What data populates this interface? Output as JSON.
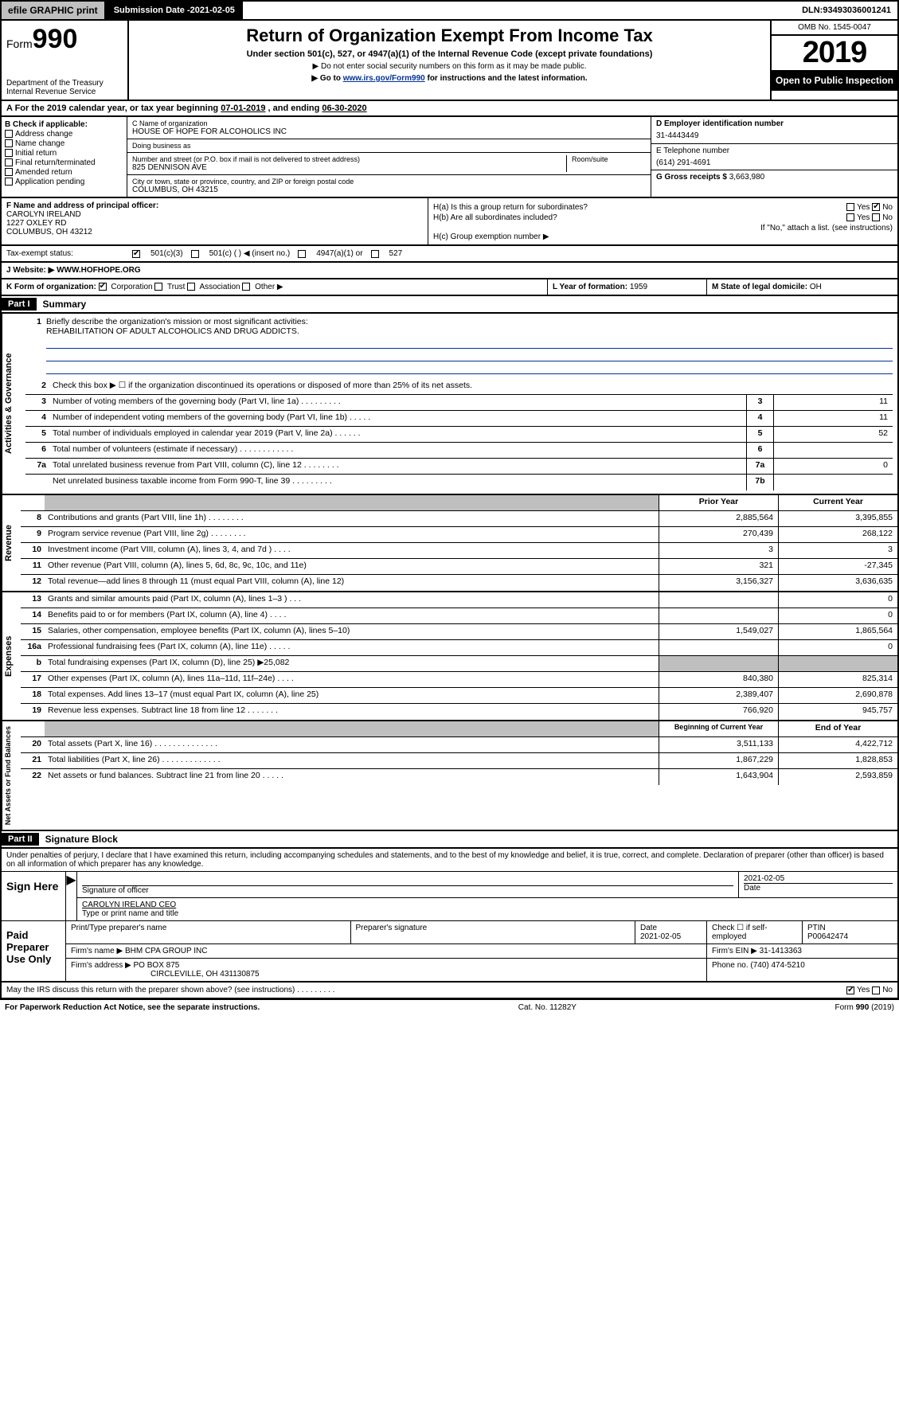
{
  "topbar": {
    "efile": "efile GRAPHIC print",
    "submission_label": "Submission Date - ",
    "submission_date": "2021-02-05",
    "dln_label": "DLN: ",
    "dln": "93493036001241"
  },
  "header": {
    "form_label": "Form",
    "form_number": "990",
    "dept": "Department of the Treasury\nInternal Revenue Service",
    "title": "Return of Organization Exempt From Income Tax",
    "subtitle": "Under section 501(c), 527, or 4947(a)(1) of the Internal Revenue Code (except private foundations)",
    "note1": "▶ Do not enter social security numbers on this form as it may be made public.",
    "note2_pre": "▶ Go to ",
    "note2_link": "www.irs.gov/Form990",
    "note2_post": " for instructions and the latest information.",
    "omb": "OMB No. 1545-0047",
    "year": "2019",
    "inspection": "Open to Public Inspection"
  },
  "period": {
    "text_pre": "A For the 2019 calendar year, or tax year beginning ",
    "begin": "07-01-2019",
    "mid": " , and ending ",
    "end": "06-30-2020"
  },
  "boxB": {
    "label": "B Check if applicable:",
    "items": [
      "Address change",
      "Name change",
      "Initial return",
      "Final return/terminated",
      "Amended return",
      "Application pending"
    ]
  },
  "boxC": {
    "name_label": "C Name of organization",
    "name": "HOUSE OF HOPE FOR ALCOHOLICS INC",
    "dba_label": "Doing business as",
    "dba": "",
    "addr_label": "Number and street (or P.O. box if mail is not delivered to street address)",
    "room_label": "Room/suite",
    "addr": "825 DENNISON AVE",
    "city_label": "City or town, state or province, country, and ZIP or foreign postal code",
    "city": "COLUMBUS, OH  43215"
  },
  "boxD": {
    "label": "D Employer identification number",
    "value": "31-4443449"
  },
  "boxE": {
    "label": "E Telephone number",
    "value": "(614) 291-4691"
  },
  "boxG": {
    "label": "G Gross receipts $ ",
    "value": "3,663,980"
  },
  "officer": {
    "label": "F Name and address of principal officer:",
    "name": "CAROLYN IRELAND",
    "addr1": "1227 OXLEY RD",
    "addr2": "COLUMBUS, OH  43212"
  },
  "boxH": {
    "a_label": "H(a)  Is this a group return for subordinates?",
    "a_yes": "Yes",
    "a_no": "No",
    "b_label": "H(b)  Are all subordinates included?",
    "b_yes": "Yes",
    "b_no": "No",
    "b_note": "If \"No,\" attach a list. (see instructions)",
    "c_label": "H(c)  Group exemption number ▶"
  },
  "taxstatus": {
    "label": "Tax-exempt status:",
    "c3": "501(c)(3)",
    "c": "501(c) (  ) ◀ (insert no.)",
    "a1": "4947(a)(1) or",
    "s527": "527"
  },
  "website": {
    "label": "Website: ▶ ",
    "value": "WWW.HOFHOPE.ORG"
  },
  "boxK": {
    "label": "K Form of organization:",
    "corp": "Corporation",
    "trust": "Trust",
    "assoc": "Association",
    "other": "Other ▶"
  },
  "boxL": {
    "label": "L Year of formation: ",
    "value": "1959"
  },
  "boxM": {
    "label": "M State of legal domicile: ",
    "value": "OH"
  },
  "part1": {
    "tag": "Part I",
    "title": "Summary"
  },
  "mission": {
    "num": "1",
    "label": "Briefly describe the organization's mission or most significant activities:",
    "text": "REHABILITATION OF ADULT ALCOHOLICS AND DRUG ADDICTS."
  },
  "governance": {
    "label": "Activities & Governance",
    "lines": [
      {
        "n": "2",
        "d": "Check this box ▶ ☐  if the organization discontinued its operations or disposed of more than 25% of its net assets.",
        "id": "",
        "v": ""
      },
      {
        "n": "3",
        "d": "Number of voting members of the governing body (Part VI, line 1a)  .  .  .  .  .  .  .  .  .",
        "id": "3",
        "v": "11"
      },
      {
        "n": "4",
        "d": "Number of independent voting members of the governing body (Part VI, line 1b)  .  .  .  .  .",
        "id": "4",
        "v": "11"
      },
      {
        "n": "5",
        "d": "Total number of individuals employed in calendar year 2019 (Part V, line 2a)  .  .  .  .  .  .",
        "id": "5",
        "v": "52"
      },
      {
        "n": "6",
        "d": "Total number of volunteers (estimate if necessary)  .  .  .  .  .  .  .  .  .  .  .  .",
        "id": "6",
        "v": ""
      },
      {
        "n": "7a",
        "d": "Total unrelated business revenue from Part VIII, column (C), line 12  .  .  .  .  .  .  .  .",
        "id": "7a",
        "v": "0"
      },
      {
        "n": "",
        "d": "Net unrelated business taxable income from Form 990-T, line 39  .  .  .  .  .  .  .  .  .",
        "id": "7b",
        "v": ""
      }
    ]
  },
  "revenue": {
    "label": "Revenue",
    "header_prior": "Prior Year",
    "header_current": "Current Year",
    "lines": [
      {
        "n": "8",
        "d": "Contributions and grants (Part VIII, line 1h)  .  .  .  .  .  .  .  .",
        "p": "2,885,564",
        "c": "3,395,855"
      },
      {
        "n": "9",
        "d": "Program service revenue (Part VIII, line 2g)  .  .  .  .  .  .  .  .",
        "p": "270,439",
        "c": "268,122"
      },
      {
        "n": "10",
        "d": "Investment income (Part VIII, column (A), lines 3, 4, and 7d )  .  .  .  .",
        "p": "3",
        "c": "3"
      },
      {
        "n": "11",
        "d": "Other revenue (Part VIII, column (A), lines 5, 6d, 8c, 9c, 10c, and 11e)",
        "p": "321",
        "c": "-27,345"
      },
      {
        "n": "12",
        "d": "Total revenue—add lines 8 through 11 (must equal Part VIII, column (A), line 12)",
        "p": "3,156,327",
        "c": "3,636,635"
      }
    ]
  },
  "expenses": {
    "label": "Expenses",
    "lines": [
      {
        "n": "13",
        "d": "Grants and similar amounts paid (Part IX, column (A), lines 1–3 )  .  .  .",
        "p": "",
        "c": "0"
      },
      {
        "n": "14",
        "d": "Benefits paid to or for members (Part IX, column (A), line 4)  .  .  .  .",
        "p": "",
        "c": "0"
      },
      {
        "n": "15",
        "d": "Salaries, other compensation, employee benefits (Part IX, column (A), lines 5–10)",
        "p": "1,549,027",
        "c": "1,865,564"
      },
      {
        "n": "16a",
        "d": "Professional fundraising fees (Part IX, column (A), line 11e)  .  .  .  .  .",
        "p": "",
        "c": "0"
      },
      {
        "n": "b",
        "d": "Total fundraising expenses (Part IX, column (D), line 25) ▶25,082",
        "p": "__SHADE__",
        "c": "__SHADE__"
      },
      {
        "n": "17",
        "d": "Other expenses (Part IX, column (A), lines 11a–11d, 11f–24e)  .  .  .  .",
        "p": "840,380",
        "c": "825,314"
      },
      {
        "n": "18",
        "d": "Total expenses. Add lines 13–17 (must equal Part IX, column (A), line 25)",
        "p": "2,389,407",
        "c": "2,690,878"
      },
      {
        "n": "19",
        "d": "Revenue less expenses. Subtract line 18 from line 12  .  .  .  .  .  .  .",
        "p": "766,920",
        "c": "945,757"
      }
    ]
  },
  "netassets": {
    "label": "Net Assets or Fund Balances",
    "header_begin": "Beginning of Current Year",
    "header_end": "End of Year",
    "lines": [
      {
        "n": "20",
        "d": "Total assets (Part X, line 16)  .  .  .  .  .  .  .  .  .  .  .  .  .  .",
        "p": "3,511,133",
        "c": "4,422,712"
      },
      {
        "n": "21",
        "d": "Total liabilities (Part X, line 26)  .  .  .  .  .  .  .  .  .  .  .  .  .",
        "p": "1,867,229",
        "c": "1,828,853"
      },
      {
        "n": "22",
        "d": "Net assets or fund balances. Subtract line 21 from line 20  .  .  .  .  .",
        "p": "1,643,904",
        "c": "2,593,859"
      }
    ]
  },
  "part2": {
    "tag": "Part II",
    "title": "Signature Block"
  },
  "sig": {
    "perjury": "Under penalties of perjury, I declare that I have examined this return, including accompanying schedules and statements, and to the best of my knowledge and belief, it is true, correct, and complete. Declaration of preparer (other than officer) is based on all information of which preparer has any knowledge.",
    "sign_here": "Sign Here",
    "sig_officer": "Signature of officer",
    "date": "2021-02-05",
    "date_label": "Date",
    "name_title": "CAROLYN IRELAND CEO",
    "type_label": "Type or print name and title",
    "paid": "Paid Preparer Use Only",
    "prep_name_label": "Print/Type preparer's name",
    "prep_sig_label": "Preparer's signature",
    "prep_date": "2021-02-05",
    "check_label": "Check ☐ if self-employed",
    "ptin_label": "PTIN",
    "ptin": "P00642474",
    "firm_name_label": "Firm's name    ▶ ",
    "firm_name": "BHM CPA GROUP INC",
    "firm_ein_label": "Firm's EIN ▶ ",
    "firm_ein": "31-1413363",
    "firm_addr_label": "Firm's address ▶ ",
    "firm_addr": "PO BOX 875",
    "firm_city": "CIRCLEVILLE, OH  431130875",
    "phone_label": "Phone no. ",
    "phone": "(740) 474-5210",
    "discuss": "May the IRS discuss this return with the preparer shown above? (see instructions)   .   .   .   .   .   .   .   .   .",
    "yes": "Yes",
    "no": "No"
  },
  "footer": {
    "pra": "For Paperwork Reduction Act Notice, see the separate instructions.",
    "cat": "Cat. No. 11282Y",
    "form": "Form 990 (2019)"
  }
}
